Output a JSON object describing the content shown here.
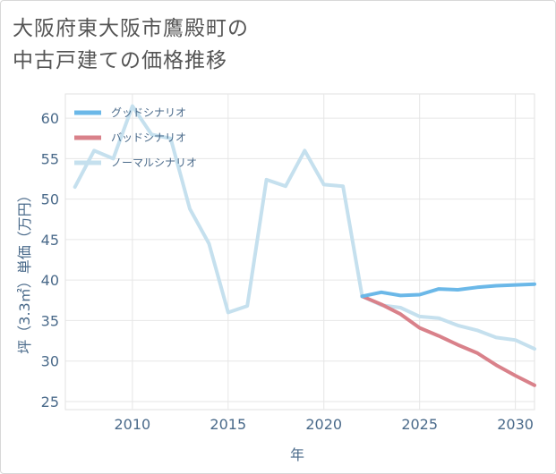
{
  "chart_data": {
    "type": "line",
    "title_line1": "大阪府東大阪市鷹殿町の",
    "title_line2": "中古戸建ての価格推移",
    "xlabel": "年",
    "ylabel": "坪（3.3㎡）単価（万円）",
    "xlim": [
      2006.5,
      2031
    ],
    "ylim": [
      24,
      63
    ],
    "xticks": [
      2010,
      2015,
      2020,
      2025,
      2030
    ],
    "yticks": [
      25,
      30,
      35,
      40,
      45,
      50,
      55,
      60
    ],
    "series": [
      {
        "name": "グッドシナリオ",
        "color": "#6bb8e8",
        "x": [
          2022,
          2023,
          2024,
          2025,
          2026,
          2027,
          2028,
          2029,
          2030,
          2031
        ],
        "values": [
          38.0,
          38.5,
          38.1,
          38.2,
          38.9,
          38.8,
          39.1,
          39.3,
          39.4,
          39.5
        ]
      },
      {
        "name": "バッドシナリオ",
        "color": "#d9818a",
        "x": [
          2022,
          2023,
          2024,
          2025,
          2026,
          2027,
          2028,
          2029,
          2030,
          2031
        ],
        "values": [
          38.0,
          37.0,
          35.8,
          34.1,
          33.1,
          32.0,
          31.0,
          29.5,
          28.2,
          27.0
        ]
      },
      {
        "name": "ノーマルシナリオ",
        "color": "#c5e0ee",
        "x": [
          2007,
          2008,
          2009,
          2010,
          2011,
          2012,
          2013,
          2014,
          2015,
          2016,
          2017,
          2018,
          2019,
          2020,
          2021,
          2022,
          2023,
          2024,
          2025,
          2026,
          2027,
          2028,
          2029,
          2030,
          2031
        ],
        "values": [
          51.5,
          56.0,
          55.0,
          61.5,
          58.0,
          57.5,
          48.8,
          44.5,
          36.0,
          36.8,
          52.4,
          51.6,
          56.0,
          51.8,
          51.6,
          38.0,
          36.9,
          36.6,
          35.5,
          35.3,
          34.4,
          33.8,
          32.9,
          32.6,
          31.5
        ]
      }
    ],
    "legend_position": "top-left"
  }
}
